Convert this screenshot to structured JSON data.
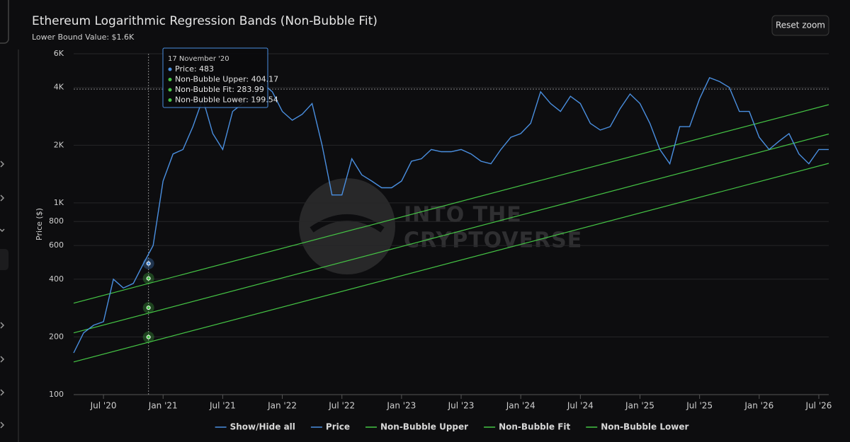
{
  "chart_data": {
    "type": "line",
    "title": "Ethereum Logarithmic Regression Bands (Non-Bubble Fit)",
    "subtitle": "Lower Bound Value: $1.6K",
    "button": "Reset zoom",
    "y_label": "Price ($)",
    "log_y": true,
    "grid": true,
    "legend_position": "bottom",
    "legend_toggle_all": "Show/Hide all",
    "watermark": [
      "INTO THE",
      "CRYPTOVERSE"
    ],
    "xlim": [
      "2020-04",
      "2026-08"
    ],
    "ylim": [
      100,
      6000
    ],
    "yticks": [
      100,
      200,
      400,
      600,
      800,
      {
        "value": 1000,
        "label": "1K"
      },
      {
        "value": 2000,
        "label": "2K"
      },
      {
        "value": 4000,
        "label": "4K"
      },
      {
        "value": 6000,
        "label": "6K"
      }
    ],
    "xticks": [
      {
        "value": "2020-07",
        "label": "Jul '20"
      },
      {
        "value": "2021-01",
        "label": "Jan '21"
      },
      {
        "value": "2021-07",
        "label": "Jul '21"
      },
      {
        "value": "2022-01",
        "label": "Jan '22"
      },
      {
        "value": "2022-07",
        "label": "Jul '22"
      },
      {
        "value": "2023-01",
        "label": "Jan '23"
      },
      {
        "value": "2023-07",
        "label": "Jul '23"
      },
      {
        "value": "2024-01",
        "label": "Jan '24"
      },
      {
        "value": "2024-07",
        "label": "Jul '24"
      },
      {
        "value": "2025-01",
        "label": "Jan '25"
      },
      {
        "value": "2025-07",
        "label": "Jul '25"
      },
      {
        "value": "2026-01",
        "label": "Jan '26"
      },
      {
        "value": "2026-07",
        "label": "Jul '26"
      }
    ],
    "x": [
      "2020-04",
      "2020-05",
      "2020-06",
      "2020-07",
      "2020-08",
      "2020-09",
      "2020-10",
      "2020-11",
      "2020-12",
      "2021-01",
      "2021-02",
      "2021-03",
      "2021-04",
      "2021-05",
      "2021-06",
      "2021-07",
      "2021-08",
      "2021-09",
      "2021-10",
      "2021-11",
      "2021-12",
      "2022-01",
      "2022-02",
      "2022-03",
      "2022-04",
      "2022-05",
      "2022-06",
      "2022-07",
      "2022-08",
      "2022-09",
      "2022-10",
      "2022-11",
      "2022-12",
      "2023-01",
      "2023-02",
      "2023-03",
      "2023-04",
      "2023-05",
      "2023-06",
      "2023-07",
      "2023-08",
      "2023-09",
      "2023-10",
      "2023-11",
      "2023-12",
      "2024-01",
      "2024-02",
      "2024-03",
      "2024-04",
      "2024-05",
      "2024-06",
      "2024-07",
      "2024-08",
      "2024-09",
      "2024-10",
      "2024-11",
      "2024-12",
      "2025-01",
      "2025-02",
      "2025-03",
      "2025-04",
      "2025-05",
      "2025-06",
      "2025-07",
      "2025-08",
      "2025-09",
      "2025-10",
      "2025-11",
      "2025-12",
      "2026-01",
      "2026-02",
      "2026-03",
      "2026-04",
      "2026-05",
      "2026-06",
      "2026-07",
      "2026-08"
    ],
    "series": [
      {
        "name": "Price",
        "color": "#4a8fe0",
        "values": [
          165,
          210,
          230,
          240,
          400,
          360,
          380,
          480,
          600,
          1300,
          1800,
          1900,
          2500,
          3500,
          2300,
          1900,
          3000,
          3300,
          3500,
          4200,
          3800,
          3000,
          2700,
          2900,
          3300,
          2000,
          1100,
          1100,
          1700,
          1400,
          1300,
          1200,
          1200,
          1300,
          1650,
          1700,
          1900,
          1850,
          1850,
          1900,
          1800,
          1650,
          1600,
          1900,
          2200,
          2300,
          2600,
          3800,
          3300,
          3000,
          3600,
          3300,
          2600,
          2400,
          2500,
          3100,
          3700,
          3300,
          2600,
          1900,
          1600,
          2500,
          2500,
          3500,
          4500,
          4300,
          4000,
          3000,
          3000,
          2200,
          1900,
          2100,
          2300,
          1800,
          1600,
          1900,
          1900
        ]
      },
      {
        "name": "Non-Bubble Upper",
        "color": "#45c545",
        "x": [
          "2020-04",
          "2026-08"
        ],
        "values": [
          300,
          3256
        ]
      },
      {
        "name": "Non-Bubble Fit",
        "color": "#45c545",
        "x": [
          "2020-04",
          "2026-08"
        ],
        "values": [
          210,
          2288
        ]
      },
      {
        "name": "Non-Bubble Lower",
        "color": "#45c545",
        "x": [
          "2020-04",
          "2026-08"
        ],
        "values": [
          148,
          1608
        ]
      }
    ],
    "tooltip": {
      "x": "2020-11-17",
      "title": "17 November '20",
      "rows": [
        "Price: 483",
        "Non-Bubble Upper: 404.17",
        "Non-Bubble Fit: 283.99",
        "Non-Bubble Lower: 199.54"
      ],
      "values": [
        483,
        404.17,
        283.99,
        199.54
      ]
    }
  }
}
